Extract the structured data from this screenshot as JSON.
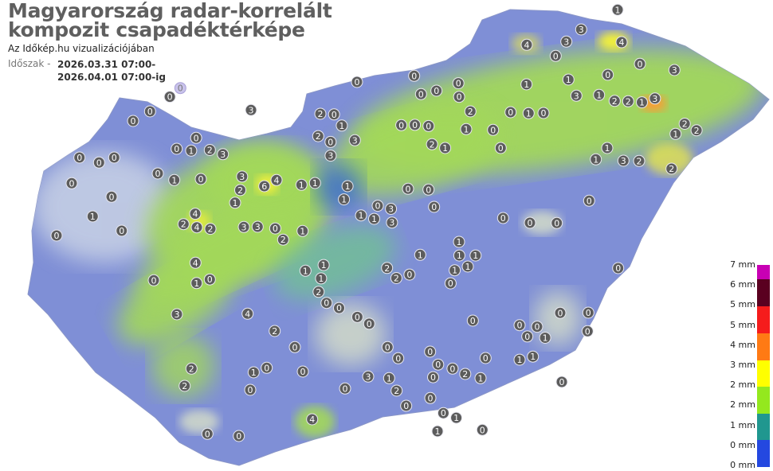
{
  "header": {
    "title_line1": "Magyarország radar-korrelált",
    "title_line2": "kompozit csapadéktérképe",
    "subtitle": "Az Időkép.hu vizualizációjában",
    "period_label": "Időszak -",
    "period_from": "2026.03.31 07:00-",
    "period_to": "2026.04.01 07:00-ig"
  },
  "legend": {
    "labels": [
      "7 mm",
      "6 mm",
      "5 mm",
      "5 mm",
      "4 mm",
      "3 mm",
      "2 mm",
      "2 mm",
      "1 mm",
      "0 mm",
      "0 mm"
    ],
    "colors": [
      "#c800b4",
      "#5a0020",
      "#f51c1c",
      "#ff7a14",
      "#ffff00",
      "#94e81e",
      "#20978f",
      "#2448e0"
    ]
  },
  "map": {
    "country_fill": "#7f8fd6",
    "rain_green": "#a3d85a",
    "rain_yellow": "#f2f03a",
    "station_values": [
      0,
      3,
      0,
      0,
      0,
      0,
      0,
      3,
      0,
      1,
      2,
      0,
      0,
      0,
      2,
      1,
      0,
      4,
      6,
      4,
      3,
      1,
      0,
      2,
      2,
      3,
      3,
      1,
      0,
      1,
      0,
      0,
      1,
      2,
      0,
      4,
      1,
      0,
      0,
      4,
      3,
      2,
      2,
      4,
      2,
      1,
      0,
      3,
      3,
      2,
      0,
      1,
      1,
      1,
      0,
      1,
      1,
      3,
      2,
      1,
      1,
      1,
      2,
      0,
      0,
      1,
      0,
      0,
      3,
      0,
      1,
      2,
      0,
      1,
      0,
      1,
      1,
      1,
      2,
      0,
      0,
      0,
      0,
      0,
      0,
      0,
      0,
      2,
      1,
      0,
      0,
      1,
      0,
      1,
      1,
      0,
      4,
      0,
      1,
      0,
      0,
      0,
      0,
      4,
      3,
      3,
      4,
      0,
      1,
      1,
      1,
      1,
      2,
      2,
      1,
      3,
      3,
      2,
      1,
      2,
      2,
      2,
      3,
      1,
      1,
      3,
      0,
      0,
      0,
      0,
      0,
      1,
      0,
      1,
      2,
      2,
      1,
      0,
      0,
      0,
      0,
      0,
      0,
      0,
      0,
      0,
      0,
      0,
      0,
      0,
      0,
      0,
      0,
      0,
      0,
      0,
      0,
      0,
      0,
      1,
      1,
      1,
      2,
      3,
      0,
      0,
      0
    ]
  }
}
